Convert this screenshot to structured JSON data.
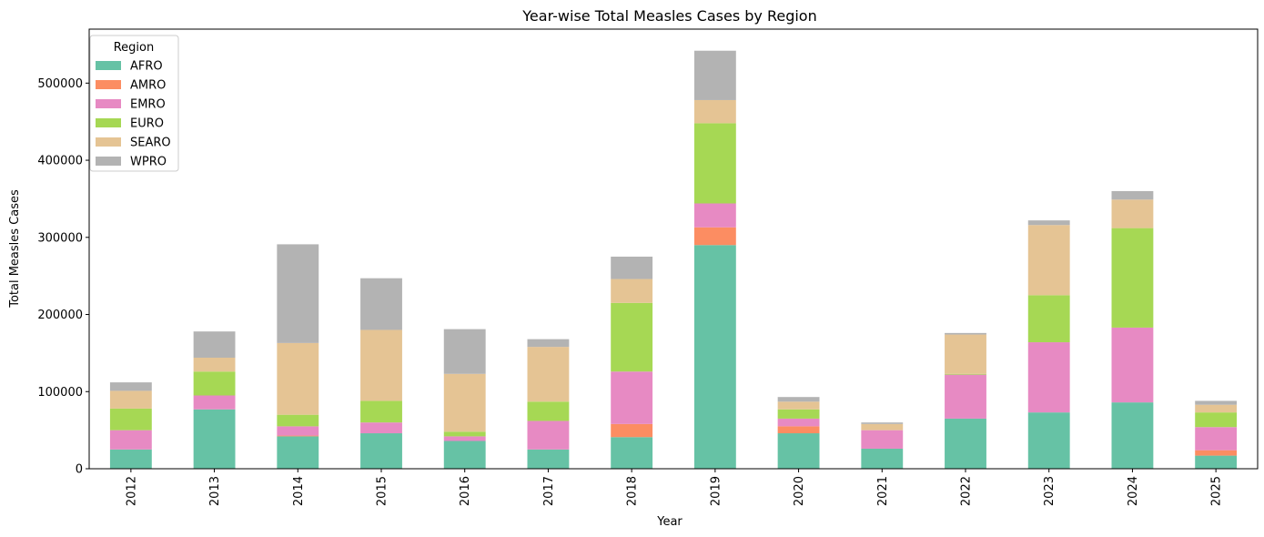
{
  "chart_data": {
    "type": "bar",
    "stacked": true,
    "title": "Year-wise Total Measles Cases by Region",
    "xlabel": "Year",
    "ylabel": "Total Measles Cases",
    "ylim": [
      0,
      570000
    ],
    "yticks": [
      0,
      100000,
      200000,
      300000,
      400000,
      500000
    ],
    "legend": {
      "title": "Region",
      "position": "top-left"
    },
    "grid": false,
    "categories": [
      "2012",
      "2013",
      "2014",
      "2015",
      "2016",
      "2017",
      "2018",
      "2019",
      "2020",
      "2021",
      "2022",
      "2023",
      "2024",
      "2025"
    ],
    "series": [
      {
        "name": "AFRO",
        "color": "#66c2a5",
        "values": [
          25000,
          77000,
          42000,
          46000,
          36000,
          25000,
          41000,
          290000,
          46000,
          26000,
          65000,
          73000,
          86000,
          17000
        ]
      },
      {
        "name": "AMRO",
        "color": "#fc8d62",
        "values": [
          0,
          0,
          1000,
          0,
          0,
          0,
          17000,
          23000,
          9000,
          0,
          0,
          0,
          0,
          7000
        ]
      },
      {
        "name": "EMRO",
        "color": "#e78ac3",
        "values": [
          25000,
          18000,
          12000,
          14000,
          6000,
          37000,
          68000,
          31000,
          10000,
          24000,
          57000,
          91000,
          97000,
          30000
        ]
      },
      {
        "name": "EURO",
        "color": "#a6d854",
        "values": [
          28000,
          31000,
          15000,
          28000,
          6000,
          25000,
          89000,
          104000,
          12000,
          0,
          1000,
          61000,
          129000,
          19000
        ]
      },
      {
        "name": "SEARO",
        "color": "#e5c494",
        "values": [
          23000,
          18000,
          93000,
          92000,
          75000,
          71000,
          31000,
          30000,
          10000,
          8000,
          51000,
          91000,
          37000,
          10000
        ]
      },
      {
        "name": "WPRO",
        "color": "#b3b3b3",
        "values": [
          11000,
          34000,
          128000,
          67000,
          58000,
          10000,
          29000,
          64000,
          6000,
          2000,
          2000,
          6000,
          11000,
          5000
        ]
      }
    ]
  }
}
